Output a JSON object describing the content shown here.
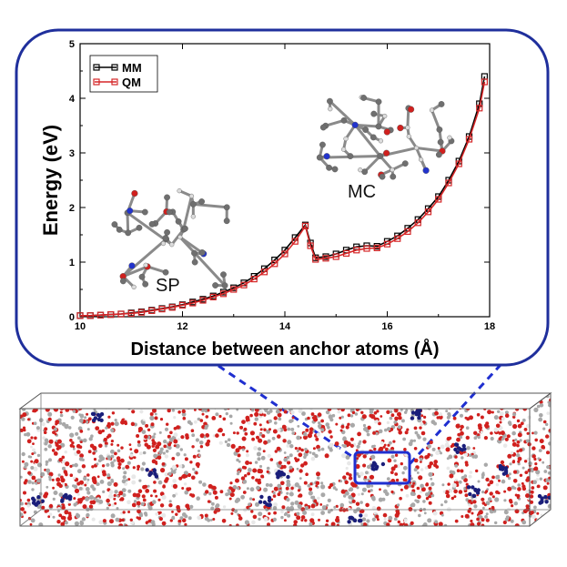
{
  "chart_data": {
    "type": "line",
    "xlabel": "Distance between anchor atoms (Å)",
    "ylabel": "Energy (eV)",
    "xlim": [
      10,
      18
    ],
    "ylim": [
      0,
      5
    ],
    "xticks": [
      "10",
      "12",
      "14",
      "16",
      "18"
    ],
    "yticks": [
      "0",
      "1",
      "2",
      "3",
      "4",
      "5"
    ],
    "legend_position": "top-left",
    "grid": false,
    "x": [
      10.0,
      10.2,
      10.4,
      10.6,
      10.8,
      11.0,
      11.2,
      11.4,
      11.6,
      11.8,
      12.0,
      12.2,
      12.4,
      12.6,
      12.8,
      13.0,
      13.2,
      13.4,
      13.6,
      13.8,
      14.0,
      14.2,
      14.4,
      14.5,
      14.6,
      14.8,
      15.0,
      15.2,
      15.4,
      15.6,
      15.8,
      16.0,
      16.2,
      16.4,
      16.6,
      16.8,
      17.0,
      17.2,
      17.4,
      17.6,
      17.8,
      17.9
    ],
    "series": [
      {
        "name": "MM",
        "color": "#000000",
        "marker": "square",
        "values": [
          0.02,
          0.02,
          0.03,
          0.04,
          0.05,
          0.07,
          0.09,
          0.12,
          0.15,
          0.18,
          0.22,
          0.27,
          0.32,
          0.38,
          0.45,
          0.53,
          0.62,
          0.74,
          0.88,
          1.04,
          1.22,
          1.45,
          1.68,
          1.35,
          1.08,
          1.1,
          1.15,
          1.22,
          1.28,
          1.3,
          1.29,
          1.38,
          1.48,
          1.62,
          1.78,
          1.98,
          2.2,
          2.5,
          2.85,
          3.3,
          3.9,
          4.4
        ]
      },
      {
        "name": "QM",
        "color": "#d62728",
        "marker": "square",
        "values": [
          0.02,
          0.02,
          0.03,
          0.04,
          0.05,
          0.06,
          0.08,
          0.11,
          0.14,
          0.17,
          0.21,
          0.25,
          0.3,
          0.36,
          0.42,
          0.5,
          0.58,
          0.69,
          0.82,
          0.97,
          1.15,
          1.38,
          1.66,
          1.3,
          1.05,
          1.07,
          1.1,
          1.16,
          1.22,
          1.25,
          1.26,
          1.33,
          1.43,
          1.56,
          1.72,
          1.92,
          2.15,
          2.45,
          2.8,
          3.25,
          3.82,
          4.3
        ]
      }
    ],
    "annotations": [
      "SP",
      "MC"
    ]
  },
  "colors": {
    "frame_border": "#1f2f9c",
    "slab_border": "#555555",
    "highlight_box": "#1f2fd0",
    "oxygen": "#d0201e",
    "carbon": "#9a9a9a",
    "spiropyran": "#1a1e7a"
  },
  "molecule_image": "ball-and-stick-molecule-icon",
  "slab_image": "molecular-dynamics-simulation-box"
}
